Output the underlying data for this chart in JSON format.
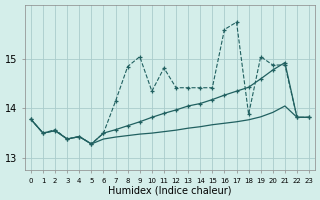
{
  "x": [
    0,
    1,
    2,
    3,
    4,
    5,
    6,
    7,
    8,
    9,
    10,
    11,
    12,
    13,
    14,
    15,
    16,
    17,
    18,
    19,
    20,
    21,
    22,
    23
  ],
  "line_dashed": [
    13.78,
    13.5,
    13.57,
    13.38,
    13.43,
    13.28,
    13.5,
    14.15,
    14.85,
    15.05,
    14.35,
    14.82,
    14.42,
    14.42,
    14.42,
    14.42,
    15.6,
    15.75,
    13.88,
    15.05,
    14.88,
    14.88,
    13.82,
    13.82
  ],
  "line_solid_low": [
    13.78,
    13.5,
    13.55,
    13.38,
    13.43,
    13.28,
    13.38,
    13.42,
    13.45,
    13.48,
    13.5,
    13.53,
    13.56,
    13.6,
    13.63,
    13.67,
    13.7,
    13.73,
    13.77,
    13.83,
    13.92,
    14.05,
    13.82,
    13.82
  ],
  "line_solid_mid": [
    13.78,
    13.5,
    13.55,
    13.38,
    13.43,
    13.28,
    13.5,
    13.57,
    13.65,
    13.73,
    13.82,
    13.9,
    13.97,
    14.05,
    14.1,
    14.18,
    14.27,
    14.35,
    14.43,
    14.6,
    14.78,
    14.93,
    13.82,
    13.82
  ],
  "bg_color": "#d4eeea",
  "line_color": "#206060",
  "grid_color": "#aacccc",
  "xlabel": "Humidex (Indice chaleur)",
  "yticks": [
    13,
    14,
    15
  ],
  "xticks": [
    0,
    1,
    2,
    3,
    4,
    5,
    6,
    7,
    8,
    9,
    10,
    11,
    12,
    13,
    14,
    15,
    16,
    17,
    18,
    19,
    20,
    21,
    22,
    23
  ],
  "xlim": [
    -0.5,
    23.5
  ],
  "ylim": [
    12.75,
    16.1
  ]
}
